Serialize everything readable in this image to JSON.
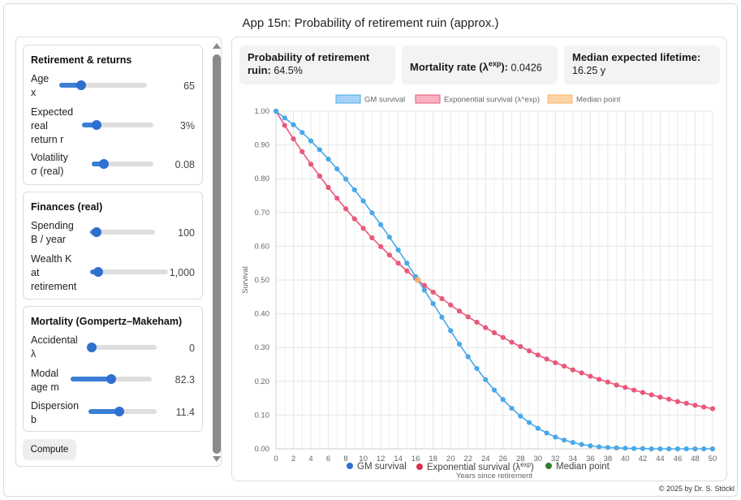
{
  "app": {
    "title": "App 15n: Probability of retirement ruin (approx.)",
    "footer": "© 2025 by Dr. S. Stöckl"
  },
  "sidebar": {
    "retirement": {
      "title": "Retirement & returns",
      "age": {
        "label_lines": [
          "Age",
          "x"
        ],
        "value": "65",
        "level": 0.25
      },
      "return": {
        "label_lines": [
          "Expected",
          "real",
          "return r"
        ],
        "value": "3%",
        "level": 0.2
      },
      "volatility": {
        "label_lines": [
          "Volatility",
          "σ (real)"
        ],
        "value": "0.08",
        "level": 0.2
      }
    },
    "finances": {
      "title": "Finances (real)",
      "spending": {
        "label_lines": [
          "Spending",
          "B / year"
        ],
        "value": "100",
        "level": 0.1
      },
      "wealth": {
        "label_lines": [
          "Wealth K",
          "at",
          "retirement"
        ],
        "value": "1,000",
        "level": 0.1
      }
    },
    "mortality": {
      "title": "Mortality (Gompertz–Makeham)",
      "accidental": {
        "label_lines": [
          "Accidental",
          "λ"
        ],
        "value": "0",
        "level": 0.0
      },
      "modal": {
        "label_lines": [
          "Modal",
          "age m"
        ],
        "value": "82.3",
        "level": 0.5
      },
      "dispersion": {
        "label_lines": [
          "Dispersion",
          "b"
        ],
        "value": "11.4",
        "level": 0.45
      }
    },
    "compute_label": "Compute"
  },
  "stats": {
    "ruin": {
      "label_line1": "Probability of retirement",
      "label_line2": "ruin:",
      "value": "64.5%"
    },
    "mortality": {
      "label": "Mortality rate (λ",
      "label_sup": "exp",
      "label_end": "):",
      "value": "0.0426"
    },
    "lifetime": {
      "label": "Median expected lifetime:",
      "value": "16.25 y"
    }
  },
  "chart_data": {
    "type": "line",
    "xlabel": "Years since retirement",
    "ylabel": "Survival",
    "xlim": [
      0,
      50
    ],
    "ylim": [
      0,
      1
    ],
    "x_ticks": [
      0,
      2,
      4,
      6,
      8,
      10,
      12,
      14,
      16,
      18,
      20,
      22,
      24,
      26,
      28,
      30,
      32,
      34,
      36,
      38,
      40,
      42,
      44,
      46,
      48,
      50
    ],
    "y_ticks": [
      "0.00",
      "0.10",
      "0.20",
      "0.30",
      "0.40",
      "0.50",
      "0.60",
      "0.70",
      "0.80",
      "0.90",
      "1.00"
    ],
    "grid": true,
    "top_legend": [
      "GM survival",
      "Exponential survival (λ^exp)",
      "Median point"
    ],
    "bottom_legend": {
      "gm": "GM survival",
      "exp_text": "Exponential survival (λ",
      "exp_sup": "exp",
      "exp_end": ")",
      "median": "Median point"
    },
    "colors": {
      "gm": "#4aa8e8",
      "exp": "#e8587a",
      "median": "#f7b267",
      "gm_legend_dot": "#2f6fd0",
      "exp_legend_dot": "#d9304f",
      "median_legend_dot": "#2e7d32"
    },
    "series": [
      {
        "name": "GM survival",
        "x": [
          0,
          1,
          2,
          3,
          4,
          5,
          6,
          7,
          8,
          9,
          10,
          11,
          12,
          13,
          14,
          15,
          16,
          17,
          18,
          19,
          20,
          21,
          22,
          23,
          24,
          25,
          26,
          27,
          28,
          29,
          30,
          31,
          32,
          33,
          34,
          35,
          36,
          37,
          38,
          39,
          40,
          41,
          42,
          43,
          44,
          45,
          46,
          47,
          48,
          49,
          50
        ],
        "y": [
          1.0,
          0.98,
          0.96,
          0.937,
          0.912,
          0.886,
          0.858,
          0.829,
          0.799,
          0.767,
          0.734,
          0.699,
          0.664,
          0.627,
          0.589,
          0.55,
          0.51,
          0.47,
          0.43,
          0.39,
          0.35,
          0.31,
          0.273,
          0.238,
          0.205,
          0.174,
          0.146,
          0.12,
          0.097,
          0.078,
          0.061,
          0.047,
          0.035,
          0.026,
          0.019,
          0.013,
          0.009,
          0.006,
          0.004,
          0.003,
          0.002,
          0.001,
          0.001,
          0.0,
          0.0,
          0.0,
          0.0,
          0.0,
          0.0,
          0.0,
          0.0
        ]
      },
      {
        "name": "Exponential survival (λ^exp)",
        "x": [
          0,
          1,
          2,
          3,
          4,
          5,
          6,
          7,
          8,
          9,
          10,
          11,
          12,
          13,
          14,
          15,
          16,
          17,
          18,
          19,
          20,
          21,
          22,
          23,
          24,
          25,
          26,
          27,
          28,
          29,
          30,
          31,
          32,
          33,
          34,
          35,
          36,
          37,
          38,
          39,
          40,
          41,
          42,
          43,
          44,
          45,
          46,
          47,
          48,
          49,
          50
        ],
        "y": [
          1.0,
          0.958,
          0.918,
          0.88,
          0.843,
          0.808,
          0.774,
          0.742,
          0.711,
          0.681,
          0.653,
          0.625,
          0.599,
          0.574,
          0.55,
          0.527,
          0.505,
          0.484,
          0.464,
          0.445,
          0.426,
          0.408,
          0.391,
          0.375,
          0.359,
          0.344,
          0.33,
          0.316,
          0.303,
          0.29,
          0.278,
          0.266,
          0.255,
          0.245,
          0.234,
          0.225,
          0.215,
          0.206,
          0.198,
          0.189,
          0.182,
          0.174,
          0.167,
          0.16,
          0.153,
          0.147,
          0.14,
          0.135,
          0.129,
          0.124,
          0.119
        ]
      },
      {
        "name": "Median point",
        "x": [
          16.25
        ],
        "y": [
          0.5
        ]
      }
    ]
  }
}
